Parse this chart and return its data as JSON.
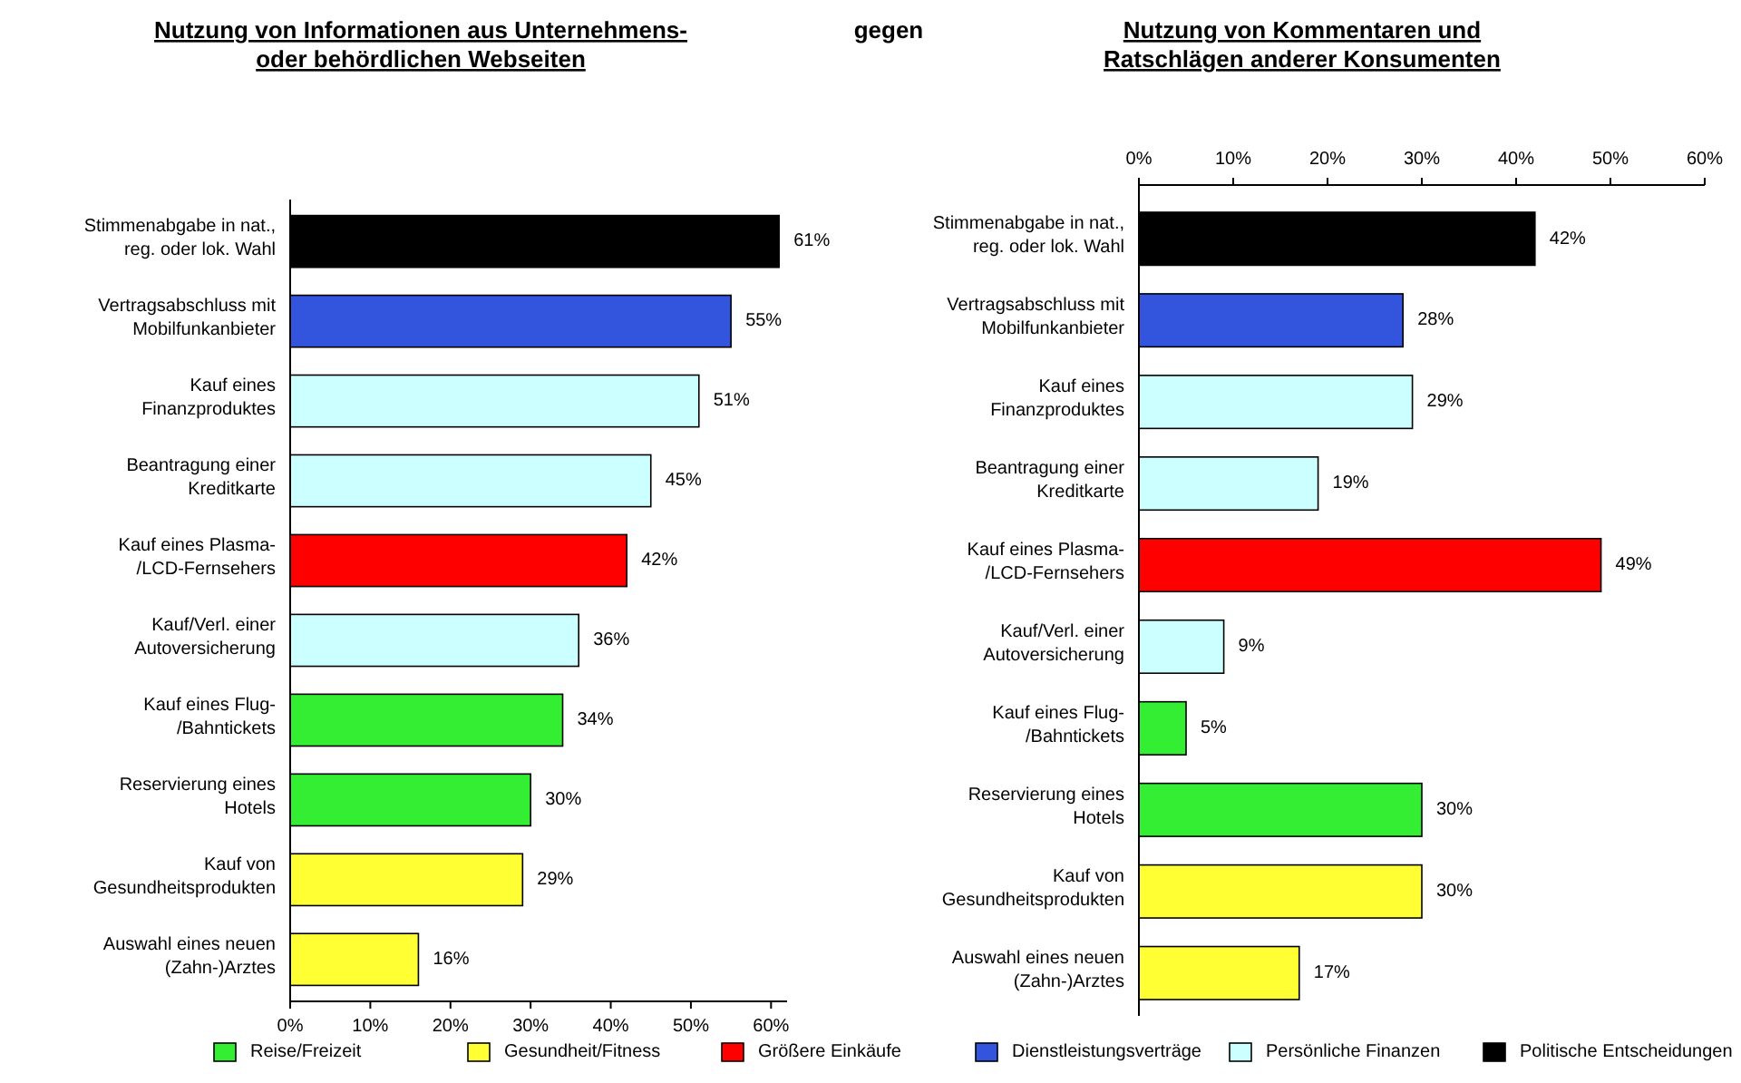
{
  "chart_data": [
    {
      "type": "bar",
      "orientation": "horizontal",
      "stacked": true,
      "title": "Nutzung von Informationen aus Unternehmens-\noder behördlichen Webseiten",
      "annotations": [
        "gegen"
      ],
      "categories": [
        "Stimmenabgabe in nat.,\nreg. oder lok. Wahl",
        "Vertragsabschluss mit\nMobilfunkanbieter",
        "Kauf eines\nFinanzproduktes",
        "Beantragung einer\nKreditkarte",
        "Kauf eines Plasma-\n/LCD-Fernsehers",
        "Kauf/Verl. einer\nAutoversicherung",
        "Kauf eines Flug-\n/Bahntickets",
        "Reservierung eines\nHotels",
        "Kauf von\nGesundheitsprodukten",
        "Auswahl eines neuen\n(Zahn-)Arztes"
      ],
      "series": [
        {
          "name": "Reise/Freizeit",
          "color": "#33ee33",
          "values": [
            null,
            null,
            null,
            null,
            null,
            null,
            34,
            30,
            null,
            null
          ]
        },
        {
          "name": "Gesundheit/Fitness",
          "color": "#ffff33",
          "values": [
            null,
            null,
            null,
            null,
            null,
            null,
            null,
            null,
            29,
            16
          ]
        },
        {
          "name": "Größere Einkäufe",
          "color": "#ff0000",
          "values": [
            null,
            null,
            null,
            null,
            42,
            null,
            null,
            null,
            null,
            null
          ]
        },
        {
          "name": "Dienstleistungsverträge",
          "color": "#3355dd",
          "values": [
            null,
            55,
            null,
            null,
            null,
            null,
            null,
            null,
            null,
            null
          ]
        },
        {
          "name": "Persönliche Finanzen",
          "color": "#ccffff",
          "values": [
            null,
            null,
            51,
            45,
            null,
            36,
            null,
            null,
            null,
            null
          ]
        },
        {
          "name": "Politische Entscheidungen",
          "color": "#000000",
          "values": [
            61,
            null,
            null,
            null,
            null,
            null,
            null,
            null,
            null,
            null
          ]
        }
      ],
      "xlim": [
        0,
        62
      ],
      "xticks": [
        {
          "value": 0,
          "label": "0%"
        },
        {
          "value": 10,
          "label": "10%"
        },
        {
          "value": 20,
          "label": "20%"
        },
        {
          "value": 30,
          "label": "30%"
        },
        {
          "value": 40,
          "label": "40%"
        },
        {
          "value": 50,
          "label": "50%"
        },
        {
          "value": 60,
          "label": "60%"
        }
      ],
      "value_labels": [
        "61%",
        "55%",
        "51%",
        "45%",
        "42%",
        "36%",
        "34%",
        "30%",
        "29%",
        "16%"
      ],
      "legend": "bottom"
    },
    {
      "type": "bar",
      "orientation": "horizontal",
      "stacked": true,
      "title": "Nutzung von Kommentaren und\nRatschlägen anderer Konsumenten",
      "categories": [
        "Stimmenabgabe in nat.,\nreg. oder lok. Wahl",
        "Vertragsabschluss mit\nMobilfunkanbieter",
        "Kauf eines\nFinanzproduktes",
        "Beantragung einer\nKreditkarte",
        "Kauf eines Plasma-\n/LCD-Fernsehers",
        "Kauf/Verl. einer\nAutoversicherung",
        "Kauf eines Flug-\n/Bahntickets",
        "Reservierung eines\nHotels",
        "Kauf von\nGesundheitsprodukten",
        "Auswahl eines neuen\n(Zahn-)Arztes"
      ],
      "series": [
        {
          "color": "#33ee33",
          "values": [
            null,
            null,
            null,
            null,
            null,
            null,
            5,
            30,
            null,
            null
          ]
        },
        {
          "color": "#ffff33",
          "values": [
            null,
            null,
            null,
            null,
            null,
            null,
            null,
            null,
            30,
            17
          ]
        },
        {
          "color": "#ff0000",
          "values": [
            null,
            null,
            null,
            null,
            49,
            null,
            null,
            null,
            null,
            null
          ]
        },
        {
          "color": "#3355dd",
          "values": [
            null,
            28,
            null,
            null,
            null,
            null,
            null,
            null,
            null,
            null
          ]
        },
        {
          "color": "#ccffff",
          "values": [
            null,
            null,
            29,
            19,
            null,
            9,
            null,
            null,
            null,
            null
          ]
        },
        {
          "color": "#000000",
          "values": [
            42,
            null,
            null,
            null,
            null,
            null,
            null,
            null,
            null,
            null
          ]
        }
      ],
      "xlim": [
        0,
        60
      ],
      "xticks": [
        {
          "value": 0,
          "label": "0%"
        },
        {
          "value": 10,
          "label": "10%"
        },
        {
          "value": 20,
          "label": "20%"
        },
        {
          "value": 30,
          "label": "30%"
        },
        {
          "value": 40,
          "label": "40%"
        },
        {
          "value": 50,
          "label": "50%"
        },
        {
          "value": 60,
          "label": "60%"
        }
      ],
      "value_labels": [
        "42%",
        "28%",
        "29%",
        "19%",
        "49%",
        "9%",
        "5%",
        "30%",
        "30%",
        "17%"
      ]
    }
  ]
}
